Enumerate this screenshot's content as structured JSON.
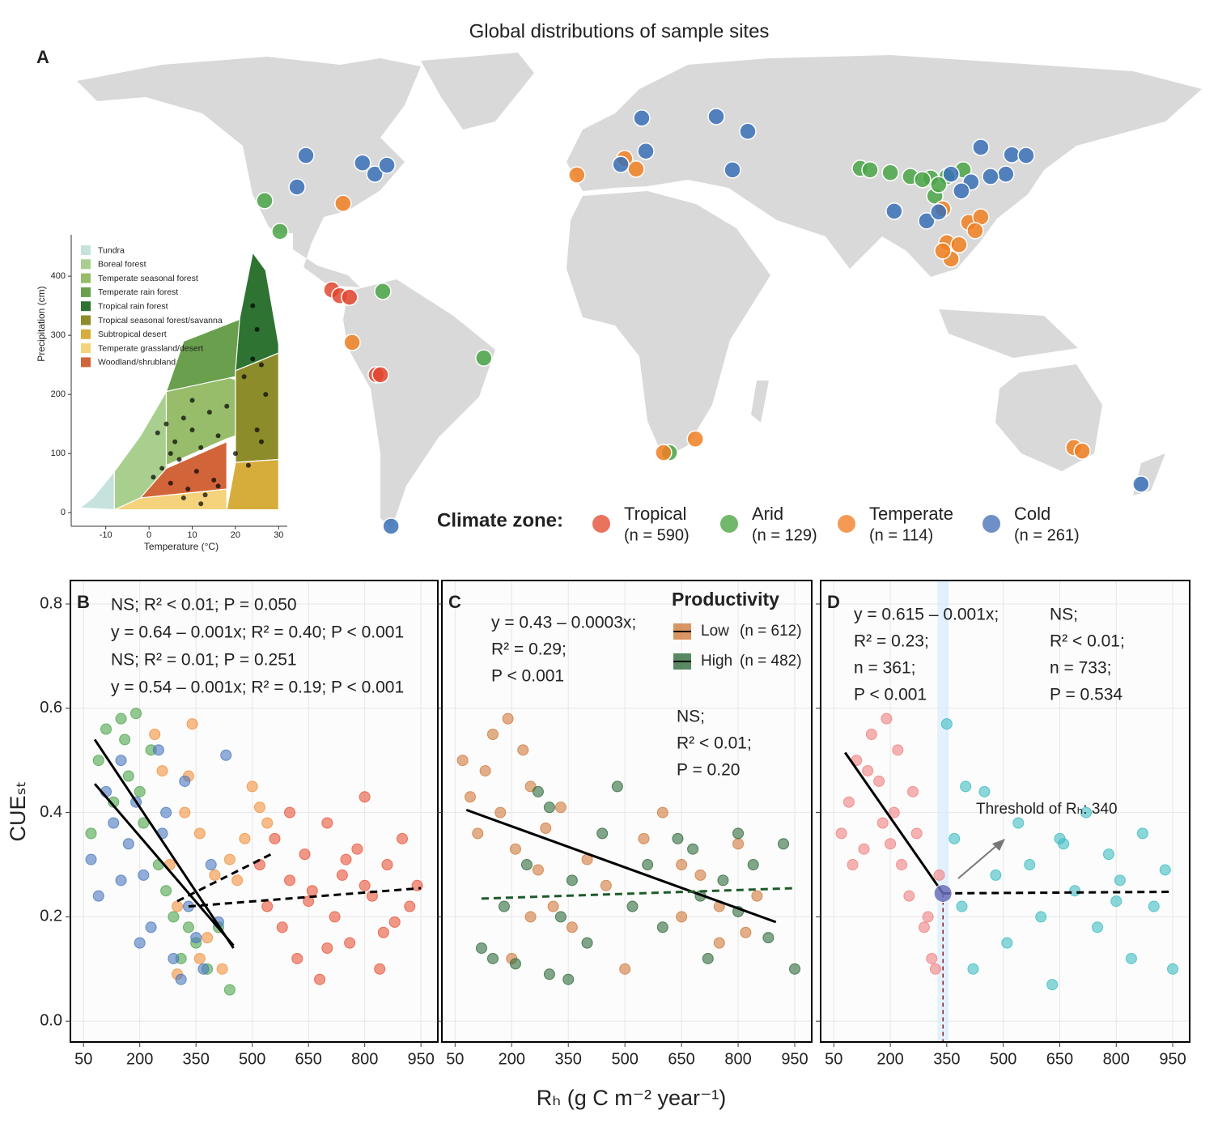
{
  "title": "Global distributions of sample sites",
  "chart_data": [
    {
      "type": "map",
      "panel": "A",
      "legend_title": "Climate zone:",
      "series": [
        {
          "name": "Tropical",
          "count_label": "(n = 590)",
          "color": "#e2472f",
          "legend_color": "#ea735d",
          "lon": [
            -98.9,
            -96.2,
            -92.9,
            -83.8,
            -82.4
          ],
          "lat": [
            7.9,
            6.4,
            6.0,
            -13.9,
            -13.9
          ]
        },
        {
          "name": "Arid",
          "count_label": "(n = 129)",
          "color": "#4aa548",
          "legend_color": "#72b86a",
          "lon": [
            -121.7,
            -116.5,
            -81.6,
            -47.3,
            15.7,
            80.5,
            83.8,
            90.7,
            97.5,
            104.4,
            109.9,
            115.4,
            105.8,
            107.1,
            101.6
          ],
          "lat": [
            30.8,
            22.9,
            7.5,
            -9.6,
            -33.9,
            39.1,
            38.7,
            38.0,
            37.0,
            36.6,
            37.0,
            38.7,
            32.0,
            34.9,
            36.2
          ]
        },
        {
          "name": "Temperate",
          "count_label": "(n = 114)",
          "color": "#f07f22",
          "legend_color": "#f59a55",
          "lon": [
            -95.1,
            -15.7,
            0.5,
            4.4,
            -92.0,
            13.7,
            24.5,
            153.0,
            155.8,
            108.5,
            117.3,
            121.4,
            109.9,
            114.0,
            111.3,
            119.5,
            108.5
          ],
          "lat": [
            30.1,
            37.4,
            41.6,
            38.9,
            -5.6,
            -33.9,
            -30.4,
            -32.6,
            -33.5,
            28.7,
            25.2,
            26.6,
            20.0,
            19.5,
            15.8,
            23.1,
            17.9
          ]
        },
        {
          "name": "Cold",
          "count_label": "(n = 261)",
          "color": "#3a70b6",
          "legend_color": "#6f8fc6",
          "lon": [
            -107.7,
            -110.7,
            -88.5,
            -84.3,
            -80.2,
            6.3,
            7.7,
            -0.8,
            31.6,
            42.3,
            37.1,
            92.0,
            103.0,
            121.4,
            131.9,
            136.8,
            129.9,
            124.7,
            118.1,
            114.8,
            175.8,
            -78.8,
            111.3,
            107.1
          ],
          "lat": [
            42.4,
            34.3,
            40.5,
            37.6,
            39.9,
            52.0,
            43.5,
            40.1,
            52.4,
            48.6,
            38.7,
            28.1,
            25.6,
            44.5,
            42.6,
            42.4,
            37.6,
            37.0,
            35.6,
            33.3,
            -42.0,
            -52.8,
            37.6,
            27.9
          ]
        }
      ]
    },
    {
      "type": "biome",
      "xlabel": "Temperature (°C)",
      "ylabel": "Precipitation (cm)",
      "xlim": [
        -18,
        32
      ],
      "ylim": [
        -23,
        470
      ],
      "xticks": [
        -10,
        0,
        10,
        20,
        30
      ],
      "yticks": [
        0,
        100,
        200,
        300,
        400
      ],
      "biomes": [
        {
          "name": "Tundra",
          "color": "#c5e3dc",
          "temperature": [
            -16,
            -8,
            -8,
            -13
          ],
          "precipitation": [
            8,
            5,
            70,
            25
          ]
        },
        {
          "name": "Boreal forest",
          "color": "#a9cf8e",
          "temperature": [
            -8,
            -2,
            4,
            4,
            -2,
            -8
          ],
          "precipitation": [
            5,
            10,
            60,
            205,
            130,
            70
          ]
        },
        {
          "name": "Temperate seasonal forest",
          "color": "#97bd6a",
          "temperature": [
            4,
            18,
            20,
            20,
            18,
            4
          ],
          "precipitation": [
            80,
            125,
            130,
            225,
            230,
            205
          ]
        },
        {
          "name": "Temperate rain forest",
          "color": "#6a9f4e",
          "temperature": [
            4,
            20,
            20,
            22,
            8
          ],
          "precipitation": [
            205,
            230,
            240,
            330,
            290
          ]
        },
        {
          "name": "Tropical rain forest",
          "color": "#2e7332",
          "temperature": [
            20,
            30,
            30,
            27,
            24,
            21
          ],
          "precipitation": [
            240,
            270,
            285,
            410,
            440,
            330
          ]
        },
        {
          "name": "Tropical seasonal forest/savanna",
          "color": "#8c8c2a",
          "temperature": [
            20,
            30,
            30,
            20
          ],
          "precipitation": [
            85,
            90,
            270,
            240
          ]
        },
        {
          "name": "Subtropical desert",
          "color": "#d6ac3b",
          "temperature": [
            18,
            30,
            30,
            20
          ],
          "precipitation": [
            5,
            5,
            90,
            85
          ]
        },
        {
          "name": "Temperate grassland/desert",
          "color": "#f5d37c",
          "temperature": [
            -8,
            18,
            18,
            -2
          ],
          "precipitation": [
            5,
            5,
            40,
            25
          ]
        },
        {
          "name": "Woodland/shrubland",
          "color": "#d2643a",
          "temperature": [
            -2,
            18,
            18,
            4
          ],
          "precipitation": [
            25,
            40,
            120,
            75
          ]
        }
      ],
      "points": {
        "x": [
          1,
          3,
          5,
          7,
          9,
          11,
          13,
          15,
          2,
          4,
          6,
          8,
          10,
          12,
          14,
          16,
          18,
          20,
          22,
          24,
          25,
          26,
          27,
          24,
          25,
          23,
          26,
          8,
          12,
          16,
          5,
          10
        ],
        "values": [
          60,
          75,
          50,
          90,
          40,
          70,
          30,
          55,
          135,
          150,
          120,
          160,
          140,
          110,
          170,
          130,
          180,
          100,
          230,
          260,
          310,
          250,
          200,
          350,
          140,
          80,
          120,
          25,
          15,
          45,
          100,
          190
        ]
      }
    },
    {
      "type": "scatter",
      "panel": "B",
      "ylabel": "CUEₛₜ",
      "xlim": [
        15,
        995
      ],
      "ylim": [
        -0.04,
        0.845
      ],
      "xticks": [
        50,
        200,
        350,
        500,
        650,
        800,
        950
      ],
      "yticks": [
        {
          "value": 0,
          "label": "0.0"
        },
        0.2,
        0.4,
        0.6,
        0.8
      ],
      "ytick_labels": true,
      "grid": true,
      "series": [
        {
          "name": "Tropical",
          "color": "#e8553a",
          "text_color": "#d9342a",
          "x": [
            520,
            540,
            560,
            580,
            600,
            620,
            640,
            660,
            680,
            700,
            720,
            740,
            760,
            780,
            800,
            820,
            840,
            860,
            880,
            900,
            920,
            940,
            600,
            700,
            800,
            650,
            750,
            850
          ],
          "values": [
            0.3,
            0.22,
            0.35,
            0.18,
            0.27,
            0.12,
            0.32,
            0.25,
            0.08,
            0.38,
            0.2,
            0.28,
            0.15,
            0.33,
            0.43,
            0.24,
            0.1,
            0.3,
            0.19,
            0.35,
            0.22,
            0.26,
            0.4,
            0.14,
            0.26,
            0.23,
            0.31,
            0.17
          ],
          "fit": {
            "x": [
              330,
              950
            ],
            "values": [
              0.22,
              0.255
            ],
            "dashed": true
          },
          "equation": [
            "NS; R² < 0.01; P = 0.050"
          ]
        },
        {
          "name": "Arid",
          "color": "#4ea54b",
          "text_color": "#3b9a3a",
          "x": [
            70,
            90,
            110,
            130,
            150,
            170,
            190,
            210,
            230,
            250,
            270,
            290,
            310,
            330,
            350,
            380,
            410,
            440,
            200,
            160
          ],
          "values": [
            0.36,
            0.5,
            0.56,
            0.42,
            0.58,
            0.47,
            0.59,
            0.38,
            0.52,
            0.3,
            0.25,
            0.2,
            0.12,
            0.18,
            0.15,
            0.1,
            0.18,
            0.06,
            0.44,
            0.54
          ],
          "fit": {
            "x": [
              80,
              450
            ],
            "values": [
              0.54,
              0.14
            ],
            "dashed": false
          },
          "equation": [
            "y = 0.64 – 0.001x; R² = 0.40; P < 0.001"
          ]
        },
        {
          "name": "Temperate",
          "color": "#f2913d",
          "text_color": "#ee7d22",
          "x": [
            240,
            260,
            280,
            300,
            320,
            340,
            360,
            380,
            400,
            420,
            440,
            460,
            480,
            500,
            520,
            540,
            360,
            300,
            330
          ],
          "values": [
            0.55,
            0.48,
            0.3,
            0.22,
            0.4,
            0.57,
            0.36,
            0.16,
            0.28,
            0.1,
            0.31,
            0.27,
            0.35,
            0.45,
            0.41,
            0.38,
            0.12,
            0.09,
            0.47
          ],
          "fit": {
            "x": [
              300,
              550
            ],
            "values": [
              0.23,
              0.32
            ],
            "dashed": true
          },
          "equation": [
            "NS; R² = 0.01; P = 0.251"
          ]
        },
        {
          "name": "Cold",
          "color": "#4a78c0",
          "text_color": "#2f6db5",
          "x": [
            70,
            90,
            110,
            130,
            150,
            170,
            190,
            210,
            230,
            250,
            270,
            290,
            310,
            330,
            350,
            370,
            390,
            410,
            430,
            200,
            150,
            260,
            320
          ],
          "values": [
            0.31,
            0.24,
            0.44,
            0.38,
            0.5,
            0.34,
            0.42,
            0.28,
            0.18,
            0.52,
            0.4,
            0.12,
            0.08,
            0.22,
            0.16,
            0.1,
            0.3,
            0.19,
            0.51,
            0.15,
            0.27,
            0.36,
            0.46
          ],
          "fit": {
            "x": [
              80,
              450
            ],
            "values": [
              0.455,
              0.145
            ],
            "dashed": false
          },
          "equation": [
            "y = 0.54 – 0.001x; R² = 0.19; P < 0.001"
          ]
        }
      ]
    },
    {
      "type": "scatter",
      "panel": "C",
      "xlabel": "Rₕ (g C m⁻² year⁻¹)",
      "xlim": [
        15,
        995
      ],
      "ylim": [
        -0.04,
        0.845
      ],
      "xticks": [
        50,
        200,
        350,
        500,
        650,
        800,
        950
      ],
      "yticks": [
        0,
        0.2,
        0.4,
        0.6,
        0.8
      ],
      "ytick_labels": false,
      "grid": true,
      "legend_title": "Productivity",
      "series": [
        {
          "name": "Low",
          "count_label": "(n = 612)",
          "color": "#d07a3c",
          "text_color": "#c0622a",
          "x": [
            70,
            90,
            110,
            130,
            150,
            170,
            190,
            210,
            230,
            250,
            270,
            290,
            310,
            330,
            360,
            400,
            450,
            500,
            550,
            600,
            650,
            700,
            750,
            800,
            850,
            200,
            250,
            650,
            750,
            820
          ],
          "values": [
            0.5,
            0.43,
            0.36,
            0.48,
            0.55,
            0.4,
            0.58,
            0.33,
            0.52,
            0.45,
            0.29,
            0.37,
            0.22,
            0.41,
            0.18,
            0.31,
            0.26,
            0.1,
            0.35,
            0.4,
            0.2,
            0.28,
            0.15,
            0.34,
            0.24,
            0.12,
            0.2,
            0.3,
            0.22,
            0.17
          ],
          "fit": {
            "x": [
              80,
              900
            ],
            "values": [
              0.405,
              0.19
            ],
            "dashed": false
          },
          "equation": [
            "y = 0.43 – 0.0003x;",
            "R² = 0.29;",
            "P < 0.001"
          ]
        },
        {
          "name": "High",
          "count_label": "(n = 482)",
          "color": "#2f6b3b",
          "text_color": "#1e5a2a",
          "x": [
            120,
            150,
            180,
            210,
            240,
            270,
            300,
            330,
            360,
            400,
            440,
            480,
            520,
            560,
            600,
            640,
            680,
            720,
            760,
            800,
            840,
            880,
            920,
            950,
            300,
            350,
            700,
            800
          ],
          "values": [
            0.14,
            0.12,
            0.22,
            0.11,
            0.3,
            0.44,
            0.09,
            0.2,
            0.27,
            0.15,
            0.36,
            0.45,
            0.22,
            0.3,
            0.18,
            0.35,
            0.33,
            0.12,
            0.27,
            0.21,
            0.3,
            0.16,
            0.34,
            0.1,
            0.41,
            0.08,
            0.24,
            0.36
          ],
          "fit": {
            "x": [
              120,
              950
            ],
            "values": [
              0.235,
              0.255
            ],
            "dashed": true
          },
          "equation": [
            "NS;",
            "R² < 0.01;",
            "P = 0.20"
          ]
        }
      ]
    },
    {
      "type": "scatter",
      "panel": "D",
      "xlim": [
        15,
        995
      ],
      "ylim": [
        -0.04,
        0.845
      ],
      "xticks": [
        50,
        200,
        350,
        500,
        650,
        800,
        950
      ],
      "yticks": [
        0,
        0.2,
        0.4,
        0.6,
        0.8
      ],
      "ytick_labels": false,
      "grid": true,
      "threshold": 340,
      "threshold_label": "Threshold of Rₕ: 340",
      "series": [
        {
          "color": "#f08080",
          "text_color": "#f4908a",
          "x": [
            70,
            90,
            110,
            130,
            150,
            170,
            190,
            210,
            230,
            250,
            270,
            290,
            310,
            330,
            100,
            140,
            180,
            220,
            260,
            300,
            320,
            200
          ],
          "values": [
            0.36,
            0.42,
            0.5,
            0.33,
            0.55,
            0.46,
            0.58,
            0.4,
            0.3,
            0.24,
            0.36,
            0.18,
            0.12,
            0.28,
            0.3,
            0.48,
            0.38,
            0.52,
            0.44,
            0.2,
            0.1,
            0.34
          ],
          "fit": {
            "x": [
              80,
              340
            ],
            "values": [
              0.515,
              0.245
            ],
            "dashed": false
          },
          "equation": [
            "y = 0.615 – 0.001x;",
            "R² = 0.23;",
            "n = 361;",
            "P < 0.001"
          ]
        },
        {
          "color": "#3dbdc1",
          "text_color": "#5cc6c8",
          "x": [
            350,
            370,
            390,
            420,
            450,
            480,
            510,
            540,
            570,
            600,
            630,
            660,
            690,
            720,
            750,
            780,
            810,
            840,
            870,
            900,
            930,
            950,
            400,
            650,
            800
          ],
          "values": [
            0.57,
            0.35,
            0.22,
            0.1,
            0.44,
            0.28,
            0.15,
            0.38,
            0.3,
            0.2,
            0.07,
            0.34,
            0.25,
            0.4,
            0.18,
            0.32,
            0.27,
            0.12,
            0.36,
            0.22,
            0.29,
            0.1,
            0.45,
            0.35,
            0.23
          ],
          "fit": {
            "x": [
              340,
              950
            ],
            "values": [
              0.245,
              0.248
            ],
            "dashed": true
          },
          "equation": [
            "NS;",
            "R² < 0.01;",
            "n = 733;",
            "P = 0.534"
          ]
        }
      ]
    }
  ]
}
